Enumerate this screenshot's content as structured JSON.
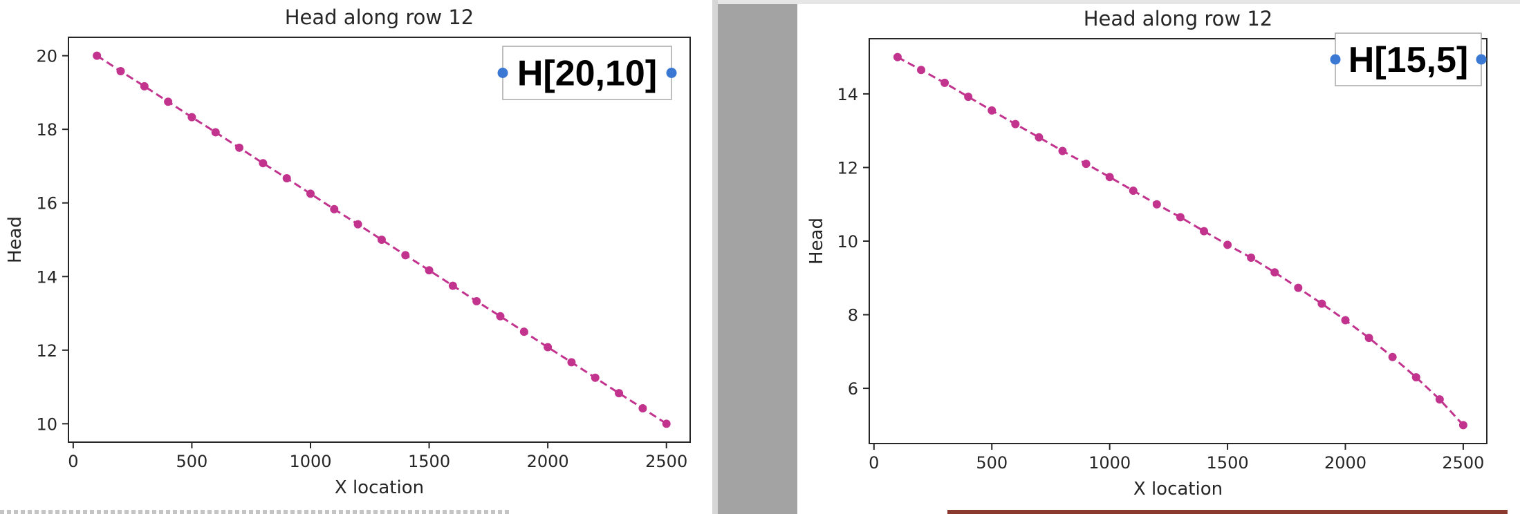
{
  "chart_data": [
    {
      "type": "line",
      "title": "Head along row 12",
      "xlabel": "X location",
      "ylabel": "Head",
      "xlim": [
        -20,
        2600
      ],
      "ylim": [
        9.5,
        20.5
      ],
      "xticks": [
        0,
        500,
        1000,
        1500,
        2000,
        2500
      ],
      "yticks": [
        10,
        12,
        14,
        16,
        18,
        20
      ],
      "legend_text": "H[20,10]",
      "legend_position": "top-right",
      "series": [
        {
          "color": "#c2338e",
          "linestyle": "dashed",
          "marker": "circle",
          "x": [
            100,
            200,
            300,
            400,
            500,
            600,
            700,
            800,
            900,
            1000,
            1100,
            1200,
            1300,
            1400,
            1500,
            1600,
            1700,
            1800,
            1900,
            2000,
            2100,
            2200,
            2300,
            2400,
            2500
          ],
          "values": [
            20.0,
            19.58,
            19.17,
            18.75,
            18.33,
            17.92,
            17.5,
            17.08,
            16.67,
            16.25,
            15.83,
            15.42,
            15.0,
            14.58,
            14.17,
            13.75,
            13.33,
            12.92,
            12.5,
            12.08,
            11.67,
            11.25,
            10.83,
            10.42,
            10.0
          ]
        }
      ]
    },
    {
      "type": "line",
      "title": "Head along row 12",
      "xlabel": "X location",
      "ylabel": "Head",
      "xlim": [
        -20,
        2600
      ],
      "ylim": [
        4.5,
        15.5
      ],
      "xticks": [
        0,
        500,
        1000,
        1500,
        2000,
        2500
      ],
      "yticks": [
        6,
        8,
        10,
        12,
        14
      ],
      "legend_text": "H[15,5]",
      "legend_position": "top-right",
      "series": [
        {
          "color": "#c2338e",
          "linestyle": "dashed",
          "marker": "circle",
          "x": [
            100,
            200,
            300,
            400,
            500,
            600,
            700,
            800,
            900,
            1000,
            1100,
            1200,
            1300,
            1400,
            1500,
            1600,
            1700,
            1800,
            1900,
            2000,
            2100,
            2200,
            2300,
            2400,
            2500
          ],
          "values": [
            15.0,
            14.65,
            14.3,
            13.92,
            13.55,
            13.18,
            12.82,
            12.45,
            12.1,
            11.74,
            11.37,
            11.0,
            10.65,
            10.27,
            9.9,
            9.55,
            9.15,
            8.73,
            8.3,
            7.85,
            7.37,
            6.85,
            6.3,
            5.7,
            5.0
          ]
        }
      ]
    }
  ],
  "colors": {
    "handle": "#3a78d4",
    "axis": "#262626",
    "legend_border": "#a8a8a8"
  }
}
